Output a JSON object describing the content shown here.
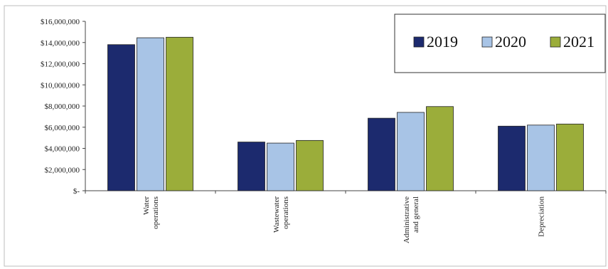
{
  "chart_data": {
    "type": "bar",
    "categories": [
      [
        "Water",
        "operations"
      ],
      [
        "Wastewater",
        "operations"
      ],
      [
        "Administrative",
        "and general"
      ],
      [
        "Depreciation"
      ]
    ],
    "series": [
      {
        "name": "2019",
        "color": "#1c2a6e",
        "values": [
          13800000,
          4600000,
          6850000,
          6100000
        ]
      },
      {
        "name": "2020",
        "color": "#a8c4e6",
        "values": [
          14450000,
          4500000,
          7400000,
          6200000
        ]
      },
      {
        "name": "2021",
        "color": "#9bad3a",
        "values": [
          14500000,
          4750000,
          7950000,
          6300000
        ]
      }
    ],
    "ylim": [
      0,
      16000000
    ],
    "yticks": [
      0,
      2000000,
      4000000,
      6000000,
      8000000,
      10000000,
      12000000,
      14000000,
      16000000
    ],
    "ytick_labels": [
      "$-",
      "$2,000,000",
      "$4,000,000",
      "$6,000,000",
      "$8,000,000",
      "$10,000,000",
      "$12,000,000",
      "$14,000,000",
      "$16,000,000"
    ],
    "legend_position": "top-right",
    "grid": false,
    "title": "",
    "xlabel": "",
    "ylabel": ""
  }
}
